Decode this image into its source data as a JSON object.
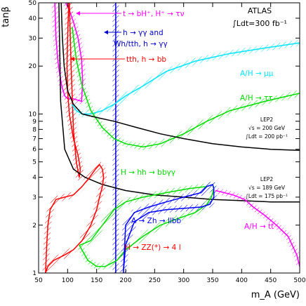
{
  "chart_data": {
    "type": "line",
    "xlabel": "m_A (GeV)",
    "ylabel": "tanβ",
    "xlim": [
      50,
      500
    ],
    "ylim": [
      1,
      50
    ],
    "yscale": "log",
    "xticks": [
      50,
      100,
      150,
      200,
      250,
      300,
      350,
      400,
      450,
      500
    ],
    "yticks": [
      1,
      2,
      3,
      4,
      5,
      6,
      7,
      8,
      9,
      10,
      20,
      30,
      40,
      50
    ],
    "legend": {
      "experiment": "ATLAS",
      "luminosity": "∫Ldt=300 fb⁻¹"
    },
    "lep_labels": [
      {
        "title": "LEP2",
        "energy": "√s = 200 GeV",
        "lumi": "∫Ldt = 200 pb⁻¹"
      },
      {
        "title": "LEP2",
        "energy": "√s = 189 GeV",
        "lumi": "∫Ldt = 175 pb⁻¹"
      }
    ],
    "series": [
      {
        "name": "t → bH⁺, H⁺ → τν",
        "color": "#ff00ff",
        "x": [
          78,
          79,
          80,
          83,
          86,
          90,
          95,
          100,
          108,
          118,
          124,
          126,
          124,
          118,
          110,
          103,
          99,
          97
        ],
        "y": [
          50,
          38,
          30,
          22,
          18,
          15,
          13,
          12.5,
          12.5,
          12.2,
          12,
          16,
          22,
          30,
          38,
          45,
          48,
          50
        ]
      },
      {
        "name": "h → γγ and Wh/tth, h → γγ",
        "color": "#0000cc",
        "x": [
          183,
          183
        ],
        "y": [
          1,
          50
        ]
      },
      {
        "name": "tth, h → bb",
        "color": "#ff0000",
        "x": [
          102,
          100,
          99,
          100,
          103,
          110,
          118,
          122,
          120,
          115,
          110,
          106,
          103
        ],
        "y": [
          50,
          30,
          20,
          14,
          10,
          7,
          5.5,
          4.5,
          4,
          5,
          8,
          20,
          50
        ]
      },
      {
        "name": "A/H → μμ",
        "color": "#00e5ff",
        "x": [
          107,
          115,
          125,
          140,
          160,
          180,
          200,
          230,
          270,
          320,
          380,
          440,
          500
        ],
        "y": [
          11.5,
          10.5,
          10,
          10,
          10.5,
          11.5,
          13,
          15,
          18.5,
          21.5,
          24,
          26,
          28
        ]
      },
      {
        "name": "A/H → ττ",
        "color": "#00dd00",
        "x": [
          108,
          115,
          125,
          140,
          160,
          180,
          200,
          230,
          260,
          300,
          340,
          380,
          440,
          500
        ],
        "y": [
          35,
          22,
          15,
          10.5,
          8.2,
          7,
          6.5,
          6.2,
          6.5,
          7.5,
          9,
          10.5,
          12,
          13.5
        ]
      },
      {
        "name": "LEP2 √s=200 GeV",
        "color": "#000000",
        "x": [
          89,
          91,
          94,
          100,
          110,
          125,
          150,
          180,
          220,
          260,
          300,
          350,
          400,
          450,
          500
        ],
        "y": [
          50,
          30,
          20,
          14,
          11.5,
          10,
          9.5,
          9,
          8.2,
          7.5,
          7,
          6.5,
          6.2,
          6,
          5.9
        ]
      },
      {
        "name": "LEP2 √s=189 GeV",
        "color": "#000000",
        "x": [
          85,
          88,
          95,
          110,
          130,
          160,
          200,
          250,
          300,
          350,
          400,
          450,
          500
        ],
        "y": [
          50,
          12,
          6,
          4.5,
          4,
          3.6,
          3.3,
          3.1,
          3,
          2.9,
          2.85,
          2.8,
          2.8
        ]
      },
      {
        "name": "H → hh → bbγγ",
        "color": "#00dd00",
        "x": [
          120,
          135,
          150,
          165,
          185,
          200,
          230,
          260,
          290,
          320,
          340,
          348,
          352,
          350,
          340,
          310,
          270,
          230,
          200,
          180,
          160,
          140,
          122,
          120
        ],
        "y": [
          1.5,
          1.2,
          1.1,
          1.1,
          1.2,
          1.4,
          1.7,
          2.0,
          2.2,
          2.4,
          2.7,
          3.0,
          3.4,
          3.6,
          3.5,
          3.4,
          3.2,
          3.0,
          2.8,
          2.5,
          2.0,
          1.6,
          1.5,
          1.5
        ]
      },
      {
        "name": "A → Zh → llbb",
        "color": "#0000ff",
        "x": [
          196,
          200,
          215,
          240,
          270,
          300,
          330,
          345,
          352,
          352,
          350,
          340,
          330,
          300,
          270,
          240,
          215,
          200,
          196
        ],
        "y": [
          1,
          1.5,
          2.1,
          2.4,
          2.5,
          2.55,
          2.6,
          2.7,
          3.0,
          3.4,
          3.6,
          3.5,
          3.2,
          3.0,
          2.8,
          2.6,
          2.4,
          2.0,
          1.0
        ]
      },
      {
        "name": "H → ZZ(*) → 4 l",
        "color": "#ff0000",
        "x": [
          62,
          66,
          76,
          95,
          110,
          125,
          140,
          150,
          155,
          160,
          162,
          160,
          155,
          148,
          138,
          125,
          110,
          95,
          80,
          70,
          66,
          64,
          62
        ],
        "y": [
          1,
          1.1,
          1.2,
          1.3,
          1.4,
          1.6,
          2.0,
          2.5,
          3.0,
          3.5,
          4.0,
          4.5,
          4.8,
          4.5,
          4.0,
          3.5,
          3.1,
          3.0,
          2.9,
          2.5,
          2.0,
          1.5,
          1.0
        ]
      },
      {
        "name": "A/H → tt",
        "color": "#ff00ff",
        "x": [
          355,
          370,
          385,
          395,
          405,
          420,
          440,
          460,
          480,
          495,
          500
        ],
        "y": [
          3.3,
          3.2,
          3.1,
          3.0,
          2.9,
          2.6,
          2.3,
          2.0,
          1.7,
          1.3,
          1.1
        ]
      }
    ],
    "annotations": [
      {
        "text": "t → bH⁺, H⁺ → τν",
        "color": "#ff00ff"
      },
      {
        "text": "h → γγ and",
        "color": "#0000cc"
      },
      {
        "text": "Wh/tth, h → γγ",
        "color": "#0000cc"
      },
      {
        "text": "tth, h → bb",
        "color": "#ff0000"
      },
      {
        "text": "A/H → μμ",
        "color": "#00e5ff"
      },
      {
        "text": "A/H → ττ",
        "color": "#00dd00"
      },
      {
        "text": "H → hh → bbγγ",
        "color": "#00dd00"
      },
      {
        "text": "A → Zh → llbb",
        "color": "#0000ff"
      },
      {
        "text": "H → ZZ(*) → 4 l",
        "color": "#ff0000"
      },
      {
        "text": "A/H → tt",
        "color": "#ff00ff"
      }
    ]
  }
}
